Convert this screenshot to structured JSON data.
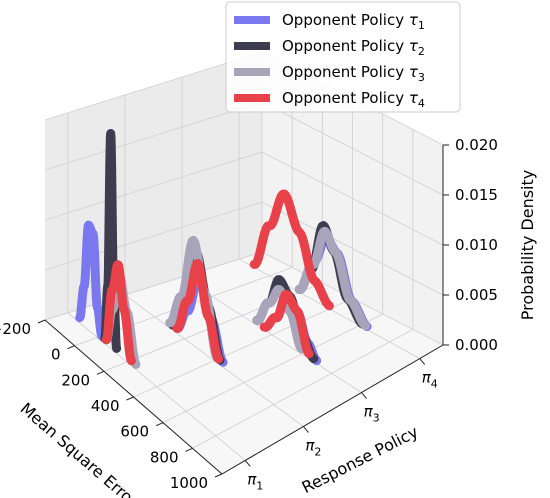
{
  "chart_data": {
    "type": "line",
    "projection": "3d",
    "xlabel": "Mean Square Error",
    "ylabel": "Response Policy",
    "zlabel": "Probability Density",
    "xlim": [
      -200,
      1000
    ],
    "xticks": [
      -200,
      0,
      200,
      400,
      600,
      800,
      1000
    ],
    "ylim": [
      0.6,
      4.4
    ],
    "yticks": [
      {
        "value": 1,
        "base": "π",
        "sub": "1"
      },
      {
        "value": 2,
        "base": "π",
        "sub": "2"
      },
      {
        "value": 3,
        "base": "π",
        "sub": "3"
      },
      {
        "value": 4,
        "base": "π",
        "sub": "4"
      }
    ],
    "zlim": [
      0,
      0.02
    ],
    "zticks": [
      "0.000",
      "0.005",
      "0.010",
      "0.015",
      "0.020"
    ],
    "grid": true,
    "legend": {
      "placement": "top-right"
    },
    "series": [
      {
        "name": "Opponent Policy",
        "subscript": "1",
        "color": "#7b78ef",
        "curves": [
          {
            "policy": 1,
            "x": [
              -120,
              -90,
              -60,
              -30,
              0,
              30
            ],
            "density": [
              0.0005,
              0.004,
              0.0105,
              0.01,
              0.003,
              0.0005
            ]
          },
          {
            "policy": 2,
            "x": [
              150,
              220,
              300,
              380,
              460
            ],
            "density": [
              0.0005,
              0.003,
              0.0075,
              0.004,
              0.0005
            ]
          },
          {
            "policy": 3,
            "x": [
              350,
              430,
              500,
              570,
              640,
              700
            ],
            "density": [
              0.0003,
              0.002,
              0.005,
              0.004,
              0.0015,
              0.0003
            ]
          },
          {
            "policy": 4,
            "x": [
              200,
              300,
              380,
              450,
              550,
              650
            ],
            "density": [
              0.0003,
              0.004,
              0.007,
              0.006,
              0.002,
              0.0003
            ]
          }
        ]
      },
      {
        "name": "Opponent Policy",
        "subscript": "2",
        "color": "#3d3d4f",
        "curves": [
          {
            "policy": 1,
            "x": [
              50,
              70,
              90,
              110,
              130
            ],
            "density": [
              0.0005,
              0.006,
              0.0215,
              0.006,
              0.0005
            ]
          },
          {
            "policy": 2,
            "x": [
              120,
              200,
              280,
              360,
              440
            ],
            "density": [
              0.0005,
              0.004,
              0.0095,
              0.005,
              0.0005
            ]
          },
          {
            "policy": 3,
            "x": [
              300,
              380,
              450,
              520,
              600,
              680
            ],
            "density": [
              0.0005,
              0.003,
              0.006,
              0.005,
              0.002,
              0.0003
            ]
          },
          {
            "policy": 4,
            "x": [
              200,
              280,
              360,
              430,
              520,
              620
            ],
            "density": [
              0.0003,
              0.003,
              0.008,
              0.006,
              0.002,
              0.0003
            ]
          }
        ]
      },
      {
        "name": "Opponent Policy",
        "subscript": "3",
        "color": "#a8a5ba",
        "curves": [
          {
            "policy": 1,
            "x": [
              60,
              100,
              150,
              200,
              260
            ],
            "density": [
              0.0005,
              0.004,
              0.008,
              0.005,
              0.0005
            ]
          },
          {
            "policy": 2,
            "x": [
              100,
              180,
              260,
              340,
              420
            ],
            "density": [
              0.0005,
              0.004,
              0.0105,
              0.006,
              0.0005
            ]
          },
          {
            "policy": 3,
            "x": [
              300,
              380,
              450,
              520,
              600
            ],
            "density": [
              0.0005,
              0.003,
              0.005,
              0.0035,
              0.0005
            ]
          },
          {
            "policy": 4,
            "x": [
              200,
              290,
              370,
              440,
              540,
              640
            ],
            "density": [
              0.0003,
              0.0035,
              0.0075,
              0.006,
              0.002,
              0.0003
            ]
          }
        ]
      },
      {
        "name": "Opponent Policy",
        "subscript": "4",
        "color": "#e8414a",
        "curves": [
          {
            "policy": 1,
            "x": [
              60,
              100,
              140,
              180,
              230
            ],
            "density": [
              0.0005,
              0.006,
              0.009,
              0.005,
              0.0005
            ]
          },
          {
            "policy": 2,
            "x": [
              150,
              220,
              290,
              360,
              430
            ],
            "density": [
              0.0005,
              0.004,
              0.0085,
              0.004,
              0.0005
            ]
          },
          {
            "policy": 3,
            "x": [
              350,
              430,
              500,
              570,
              650
            ],
            "density": [
              0.0003,
              0.002,
              0.005,
              0.004,
              0.0005
            ]
          },
          {
            "policy": 4,
            "x": [
              -100,
              0,
              100,
              200,
              300,
              400
            ],
            "density": [
              0.0003,
              0.005,
              0.009,
              0.006,
              0.002,
              0.0003
            ]
          }
        ]
      }
    ]
  }
}
